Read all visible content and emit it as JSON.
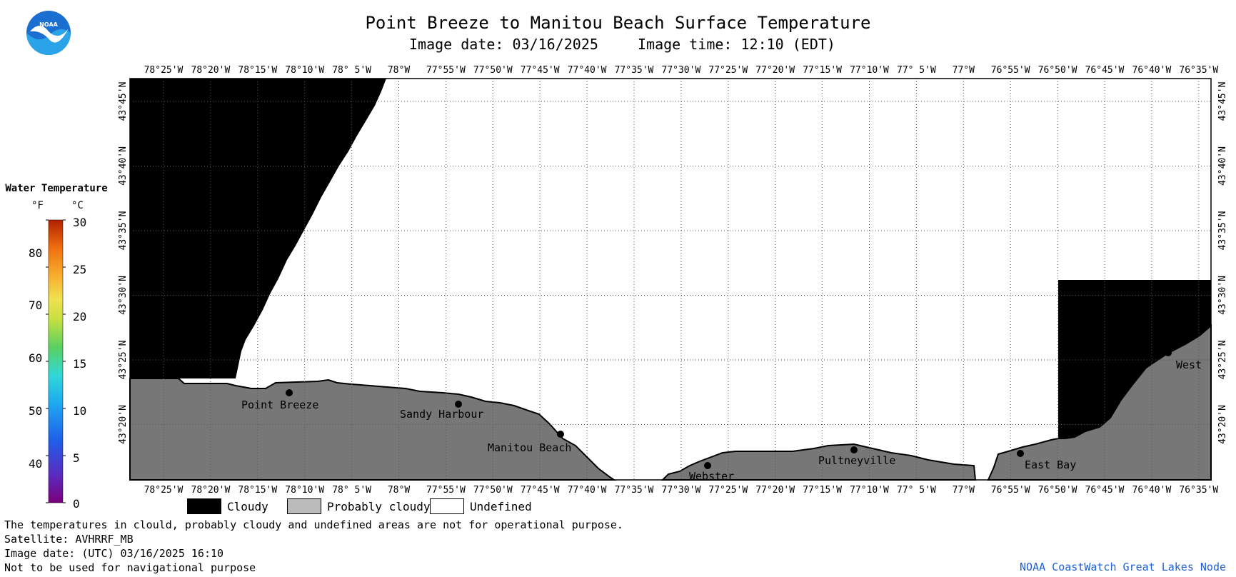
{
  "title": "Point Breeze to Manitou Beach Surface Temperature",
  "subtitle_date": "Image date: 03/16/2025",
  "subtitle_time": "Image time: 12:10 (EDT)",
  "lon_labels": [
    "78°25'W",
    "78°20'W",
    "78°15'W",
    "78°10'W",
    "78° 5'W",
    "78°W",
    "77°55'W",
    "77°50'W",
    "77°45'W",
    "77°40'W",
    "77°35'W",
    "77°30'W",
    "77°25'W",
    "77°20'W",
    "77°15'W",
    "77°10'W",
    "77° 5'W",
    "77°W",
    "76°55'W",
    "76°50'W",
    "76°45'W",
    "76°40'W",
    "76°35'W"
  ],
  "lat_labels": [
    "43°45'N",
    "43°40'N",
    "43°35'N",
    "43°30'N",
    "43°25'N",
    "43°20'N"
  ],
  "places": [
    {
      "name": "Point Breeze",
      "label": "Point Breeze"
    },
    {
      "name": "Sandy Harbour",
      "label": "Sandy Harbour"
    },
    {
      "name": "Manitou Beach",
      "label": "Manitou Beach"
    },
    {
      "name": "Webster",
      "label": "Webster"
    },
    {
      "name": "Pultneyville",
      "label": "Pultneyville"
    },
    {
      "name": "East Bay",
      "label": "East Bay"
    },
    {
      "name": "West",
      "label": "West"
    }
  ],
  "colorbar": {
    "title": "Water Temperature",
    "unit_f": "°F",
    "unit_c": "°C",
    "ticks_f": [
      "80",
      "70",
      "60",
      "50",
      "40"
    ],
    "ticks_c": [
      "30",
      "25",
      "20",
      "15",
      "10",
      "5",
      "0"
    ]
  },
  "legend": {
    "cloudy": "Cloudy",
    "probably_cloudy": "Probably cloudy",
    "undefined": "Undefined",
    "cloudy_color": "#000000",
    "probably_cloudy_color": "#bbbbbb",
    "undefined_color": "#ffffff",
    "land_color": "#777777"
  },
  "footer": {
    "line1": "The temperatures in clould, probably cloudy and undefined areas are not for operational purpose.",
    "line2": "Satellite: AVHRRF_MB",
    "line3": "Image date: (UTC) 03/16/2025  16:10",
    "line4": "Not to be used for navigational purpose"
  },
  "credit": "NOAA CoastWatch Great Lakes Node",
  "logo": {
    "text": "NOAA",
    "icon": "noaa-logo-icon"
  }
}
